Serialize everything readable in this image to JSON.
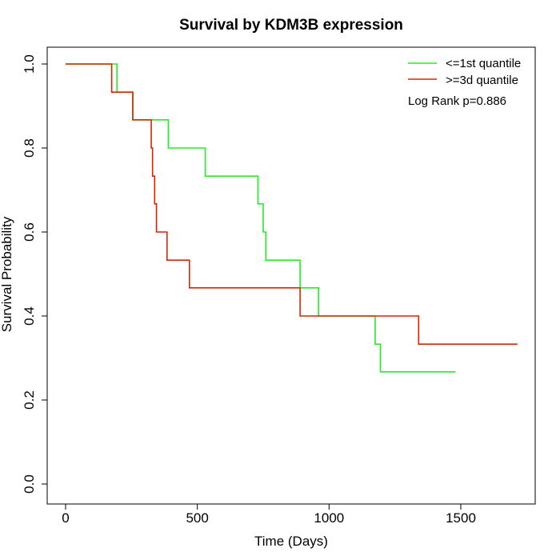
{
  "chart_data": {
    "type": "line",
    "title": "Survival by KDM3B expression",
    "xlabel": "Time (Days)",
    "ylabel": "Survival Probability",
    "xlim": [
      0,
      1750
    ],
    "ylim": [
      0,
      1.0
    ],
    "xticks": [
      "0",
      "500",
      "1000",
      "1500"
    ],
    "yticks": [
      "0.0",
      "0.2",
      "0.4",
      "0.6",
      "0.8",
      "1.0"
    ],
    "legend_position": "top-right",
    "annotation": "Log Rank p=0.886",
    "series": [
      {
        "name": "<=1st quantile",
        "color": "#22ee22",
        "x": [
          0,
          195,
          255,
          390,
          530,
          730,
          750,
          760,
          890,
          960,
          1175,
          1195,
          1480
        ],
        "y": [
          1.0,
          0.933,
          0.867,
          0.8,
          0.733,
          0.667,
          0.6,
          0.533,
          0.467,
          0.4,
          0.333,
          0.267,
          0.267
        ]
      },
      {
        "name": ">=3d quantile",
        "color": "#dd2200",
        "x": [
          0,
          175,
          255,
          325,
          330,
          338,
          345,
          385,
          470,
          890,
          1340,
          1715
        ],
        "y": [
          1.0,
          0.933,
          0.867,
          0.8,
          0.733,
          0.667,
          0.6,
          0.533,
          0.467,
          0.4,
          0.333,
          0.333
        ]
      }
    ]
  }
}
